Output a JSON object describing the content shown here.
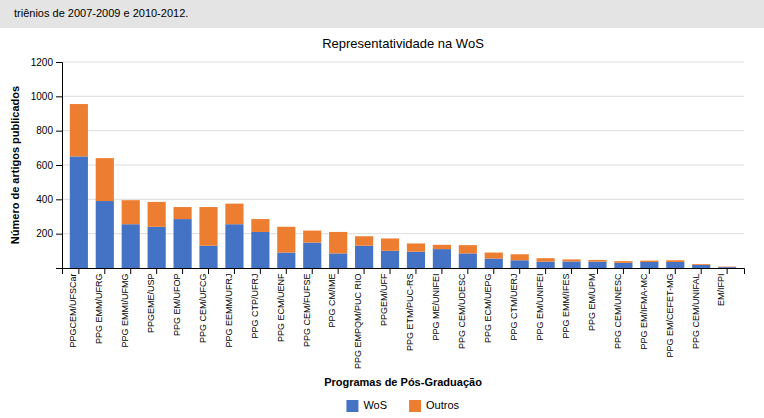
{
  "chart_data": {
    "type": "bar",
    "stacked": true,
    "title": "Representatividade na WoS",
    "subtitle": "triênios de 2007-2009 e 2010-2012.",
    "xlabel": "Programas de Pós-Graduação",
    "ylabel": "Número de artigos publicados",
    "categories": [
      "PPGCEM/UFSCar",
      "PPG EMM/UFRG",
      "PPG EMMI/UFMG",
      "PPGEME/USP",
      "PPG EM/UFOP",
      "PPG CEM/UFCG",
      "PPG EEMM/UFRJ",
      "PPG CTP/UFRJ",
      "PPG ECM/UENF",
      "PPG CEM/FUFSE",
      "PPG CM/IME",
      "PPG EMPQM/PUC RIO",
      "PPGEM/UFF",
      "PPG ETM/PUC-RS",
      "PPG ME/UNIFEI",
      "PPG CEM/UDESC",
      "PPG ECM/UEPG",
      "PPG CTM/UERJ",
      "PPG EM/UNIFEI",
      "PPG EMM/IFES",
      "PPG EM/UPM",
      "PPG CEM/UNESC",
      "PPG EM/IFMA-MC",
      "PPG EM/CEFET-MG",
      "PPG CEM/UNIFAL",
      "EM/IFPI"
    ],
    "series": [
      {
        "name": "WoS",
        "color": "#4472C4",
        "values": [
          650,
          390,
          255,
          240,
          285,
          130,
          255,
          210,
          90,
          148,
          85,
          130,
          100,
          95,
          110,
          85,
          55,
          45,
          37,
          38,
          37,
          30,
          35,
          35,
          18,
          5
        ]
      },
      {
        "name": "Outros",
        "color": "#ED7D31",
        "values": [
          305,
          250,
          140,
          145,
          70,
          225,
          120,
          75,
          150,
          70,
          125,
          55,
          72,
          48,
          25,
          48,
          35,
          35,
          20,
          12,
          10,
          10,
          8,
          10,
          5,
          3
        ]
      }
    ],
    "ylim": [
      0,
      1200
    ],
    "yticks": [
      200,
      400,
      600,
      800,
      1000,
      1200
    ],
    "grid": true,
    "legend": "bottom"
  }
}
